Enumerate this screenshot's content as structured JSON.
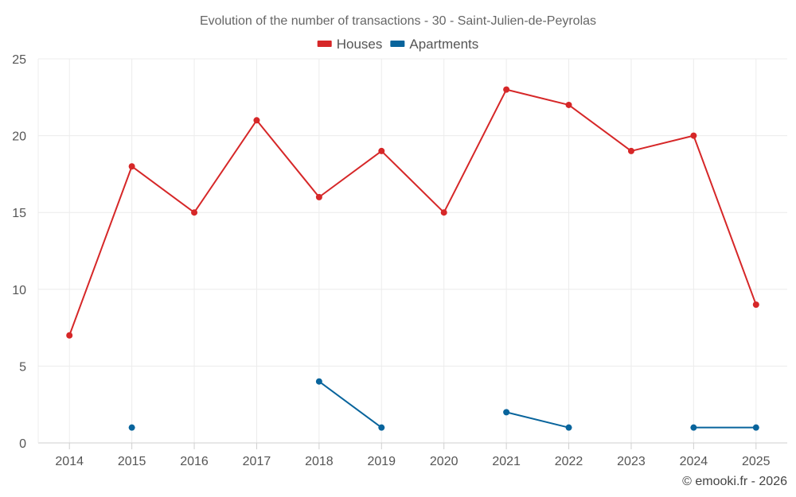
{
  "chart_data": {
    "type": "line",
    "title": "Evolution of the number of transactions - 30 - Saint-Julien-de-Peyrolas",
    "categories": [
      "2014",
      "2015",
      "2016",
      "2017",
      "2018",
      "2019",
      "2020",
      "2021",
      "2022",
      "2023",
      "2024",
      "2025"
    ],
    "series": [
      {
        "name": "Houses",
        "color": "#d62728",
        "values": [
          7,
          18,
          15,
          21,
          16,
          19,
          15,
          23,
          22,
          19,
          20,
          9
        ]
      },
      {
        "name": "Apartments",
        "color": "#08649c",
        "values": [
          null,
          1,
          null,
          null,
          4,
          1,
          null,
          2,
          1,
          null,
          1,
          1
        ]
      }
    ],
    "ylim": [
      0,
      25
    ],
    "yticks": [
      0,
      5,
      10,
      15,
      20,
      25
    ],
    "grid": true,
    "legend_position": "top-center"
  },
  "credit": "© emooki.fr - 2026"
}
